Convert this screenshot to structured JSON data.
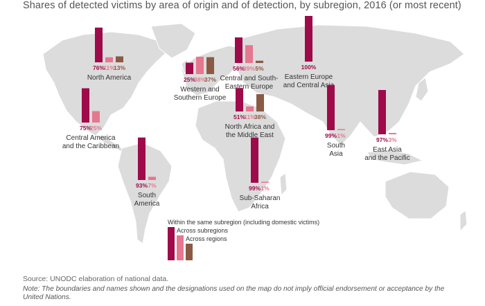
{
  "title": "Shares of detected victims by area of origin and of detection, by subregion, 2016 (or most recent)",
  "colors": {
    "same": "#9e0a4a",
    "subregions": "#e5778f",
    "regions": "#8a5a44",
    "land": "#dcdcdc"
  },
  "chart_data": {
    "type": "bar",
    "series_names": [
      "Within the same subregion (including domestic victims)",
      "Across subregions",
      "Across regions"
    ],
    "groups": [
      {
        "name_lines": [
          "North America"
        ],
        "values": [
          76,
          11,
          13
        ],
        "labels": [
          "76%",
          "11%",
          "13%"
        ]
      },
      {
        "name_lines": [
          "Central America",
          "and the Caribbean"
        ],
        "values": [
          75,
          25
        ],
        "labels": [
          "75%",
          "25%"
        ]
      },
      {
        "name_lines": [
          "South",
          "America"
        ],
        "values": [
          93,
          7
        ],
        "labels": [
          "93%",
          "7%"
        ]
      },
      {
        "name_lines": [
          "Western and",
          "Southern Europe"
        ],
        "values": [
          25,
          38,
          37
        ],
        "labels": [
          "25%",
          "38%",
          "37%"
        ]
      },
      {
        "name_lines": [
          "Central and South-",
          "Eastern Europe"
        ],
        "values": [
          56,
          39,
          5
        ],
        "labels": [
          "56%",
          "39%",
          "5%"
        ]
      },
      {
        "name_lines": [
          "Eastern Europe",
          "and Central Asia"
        ],
        "values": [
          100
        ],
        "labels": [
          "100%"
        ]
      },
      {
        "name_lines": [
          "North Africa and",
          "the Middle East"
        ],
        "values": [
          51,
          11,
          38
        ],
        "labels": [
          "51%",
          "11%",
          "38%"
        ]
      },
      {
        "name_lines": [
          "Sub-Saharan",
          "Africa"
        ],
        "values": [
          99,
          1
        ],
        "labels": [
          "99%",
          "1%"
        ]
      },
      {
        "name_lines": [
          "South",
          "Asia"
        ],
        "values": [
          99,
          1
        ],
        "labels": [
          "99%",
          "1%"
        ]
      },
      {
        "name_lines": [
          "East Asia",
          "and the Pacific"
        ],
        "values": [
          97,
          3
        ],
        "labels": [
          "97%",
          "3%"
        ]
      }
    ]
  },
  "source": "Source: UNODC elaboration of national data.",
  "note": "Note: The boundaries and names shown and the designations used on the map do not imply official endorsement or acceptance by the United Nations."
}
